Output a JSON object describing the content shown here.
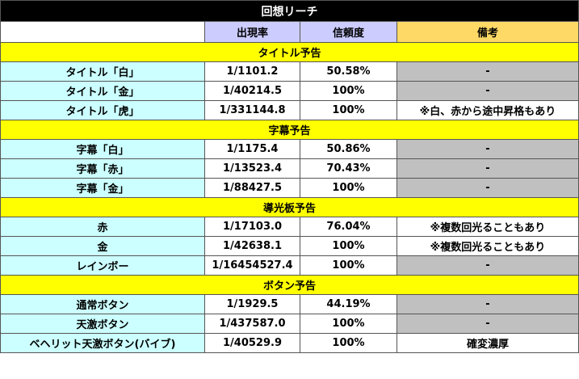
{
  "title": "回想リーチ",
  "headers": {
    "rate": "出現率",
    "reliability": "信頼度",
    "note": "備考"
  },
  "sections": [
    {
      "name": "タイトル予告",
      "rows": [
        {
          "name": "タイトル「白」",
          "rate": "1/1101.2",
          "reliability": "50.58%",
          "note": "-"
        },
        {
          "name": "タイトル「金」",
          "rate": "1/40214.5",
          "reliability": "100%",
          "note": "-"
        },
        {
          "name": "タイトル「虎」",
          "rate": "1/331144.8",
          "reliability": "100%",
          "note": "※白、赤から途中昇格もあり"
        }
      ]
    },
    {
      "name": "字幕予告",
      "rows": [
        {
          "name": "字幕「白」",
          "rate": "1/1175.4",
          "reliability": "50.86%",
          "note": "-"
        },
        {
          "name": "字幕「赤」",
          "rate": "1/13523.4",
          "reliability": "70.43%",
          "note": "-"
        },
        {
          "name": "字幕「金」",
          "rate": "1/88427.5",
          "reliability": "100%",
          "note": "-"
        }
      ]
    },
    {
      "name": "導光板予告",
      "rows": [
        {
          "name": "赤",
          "rate": "1/17103.0",
          "reliability": "76.04%",
          "note": "※複数回光ることもあり"
        },
        {
          "name": "金",
          "rate": "1/42638.1",
          "reliability": "100%",
          "note": "※複数回光ることもあり"
        },
        {
          "name": "レインボー",
          "rate": "1/16454527.4",
          "reliability": "100%",
          "note": "-"
        }
      ]
    },
    {
      "name": "ボタン予告",
      "rows": [
        {
          "name": "通常ボタン",
          "rate": "1/1929.5",
          "reliability": "44.19%",
          "note": "-"
        },
        {
          "name": "天激ボタン",
          "rate": "1/437587.0",
          "reliability": "100%",
          "note": "-"
        },
        {
          "name": "ベヘリット天激ボタン(バイブ)",
          "rate": "1/40529.9",
          "reliability": "100%",
          "note": "確変濃厚"
        }
      ]
    }
  ]
}
